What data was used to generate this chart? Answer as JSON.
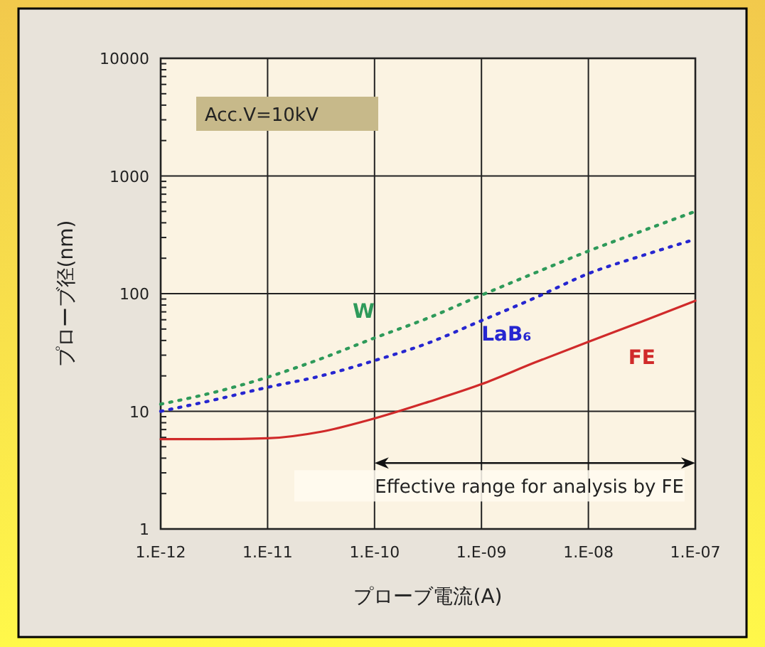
{
  "chart_data": {
    "type": "line",
    "xlabel": "プローブ電流(A)",
    "ylabel": "プローブ径(nm)",
    "log": "y",
    "grid": true,
    "legend": false,
    "marker": "none",
    "ylim": [
      1,
      10000
    ],
    "yticks": [
      1,
      10,
      100,
      1000,
      10000
    ],
    "categories": [
      "1.E-12",
      null,
      "1.E-11",
      null,
      "1.E-10",
      null,
      "1.E-09",
      null,
      "1.E-08",
      null,
      "1.E-07"
    ],
    "series": [
      {
        "name": "W",
        "color": "#2e9a5a",
        "line_style": "dotted",
        "values": [
          11.5,
          14.5,
          19.5,
          28,
          42,
          62,
          97,
          150,
          230,
          340,
          500
        ]
      },
      {
        "name": "LaB₆",
        "color": "#2626d0",
        "line_style": "dotted",
        "values": [
          10,
          12.5,
          16,
          20,
          27,
          38,
          59,
          92,
          148,
          210,
          290
        ]
      },
      {
        "name": "FE",
        "color": "#d02a2a",
        "line_style": "solid",
        "values": [
          5.8,
          5.8,
          5.9,
          6.7,
          8.7,
          12,
          17,
          26,
          39,
          58,
          87
        ]
      }
    ],
    "annotations": [
      "Acc.V=10kV",
      "Effective range for analysis by FE"
    ]
  }
}
